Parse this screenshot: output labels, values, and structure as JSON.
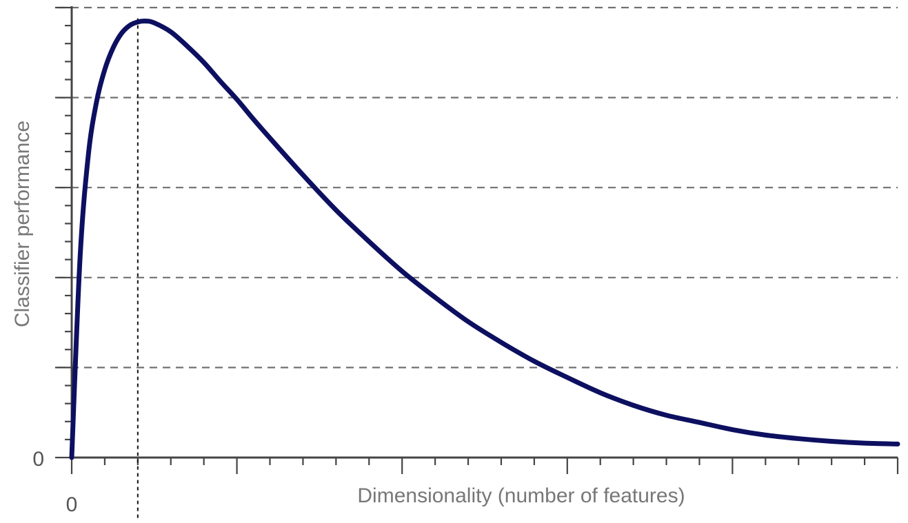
{
  "chart_data": {
    "type": "line",
    "title": "",
    "xlabel": "Dimensionality (number of features)",
    "ylabel": "Classifier performance",
    "x_tick_labels": [
      "0"
    ],
    "y_tick_labels": [
      "0"
    ],
    "xlim": [
      0,
      25
    ],
    "ylim": [
      0,
      5
    ],
    "x_major_ticks": [
      0,
      5,
      10,
      15,
      20,
      25
    ],
    "x_minor_step": 1,
    "y_major_ticks": [
      0,
      1,
      2,
      3,
      4,
      5
    ],
    "y_minor_step": 0.2,
    "grid": "horizontal dashed at y major ticks",
    "optimum_marker": {
      "x": 2,
      "style": "vertical dotted line"
    },
    "series": [
      {
        "color": "#0d1060",
        "x": [
          0,
          0.25,
          0.5,
          0.75,
          1,
          1.25,
          1.5,
          1.75,
          2,
          2.25,
          2.5,
          3,
          3.5,
          4,
          4.5,
          5,
          5.5,
          6,
          7,
          8,
          9,
          10,
          11,
          12,
          13,
          14,
          15,
          16,
          17,
          18,
          19,
          20,
          21,
          22,
          23,
          24,
          25
        ],
        "y": [
          0,
          2.2,
          3.35,
          3.95,
          4.31,
          4.55,
          4.71,
          4.8,
          4.84,
          4.85,
          4.83,
          4.73,
          4.57,
          4.39,
          4.18,
          3.98,
          3.76,
          3.55,
          3.14,
          2.75,
          2.4,
          2.07,
          1.78,
          1.51,
          1.28,
          1.07,
          0.89,
          0.72,
          0.58,
          0.47,
          0.39,
          0.31,
          0.25,
          0.21,
          0.18,
          0.16,
          0.15
        ]
      }
    ]
  }
}
